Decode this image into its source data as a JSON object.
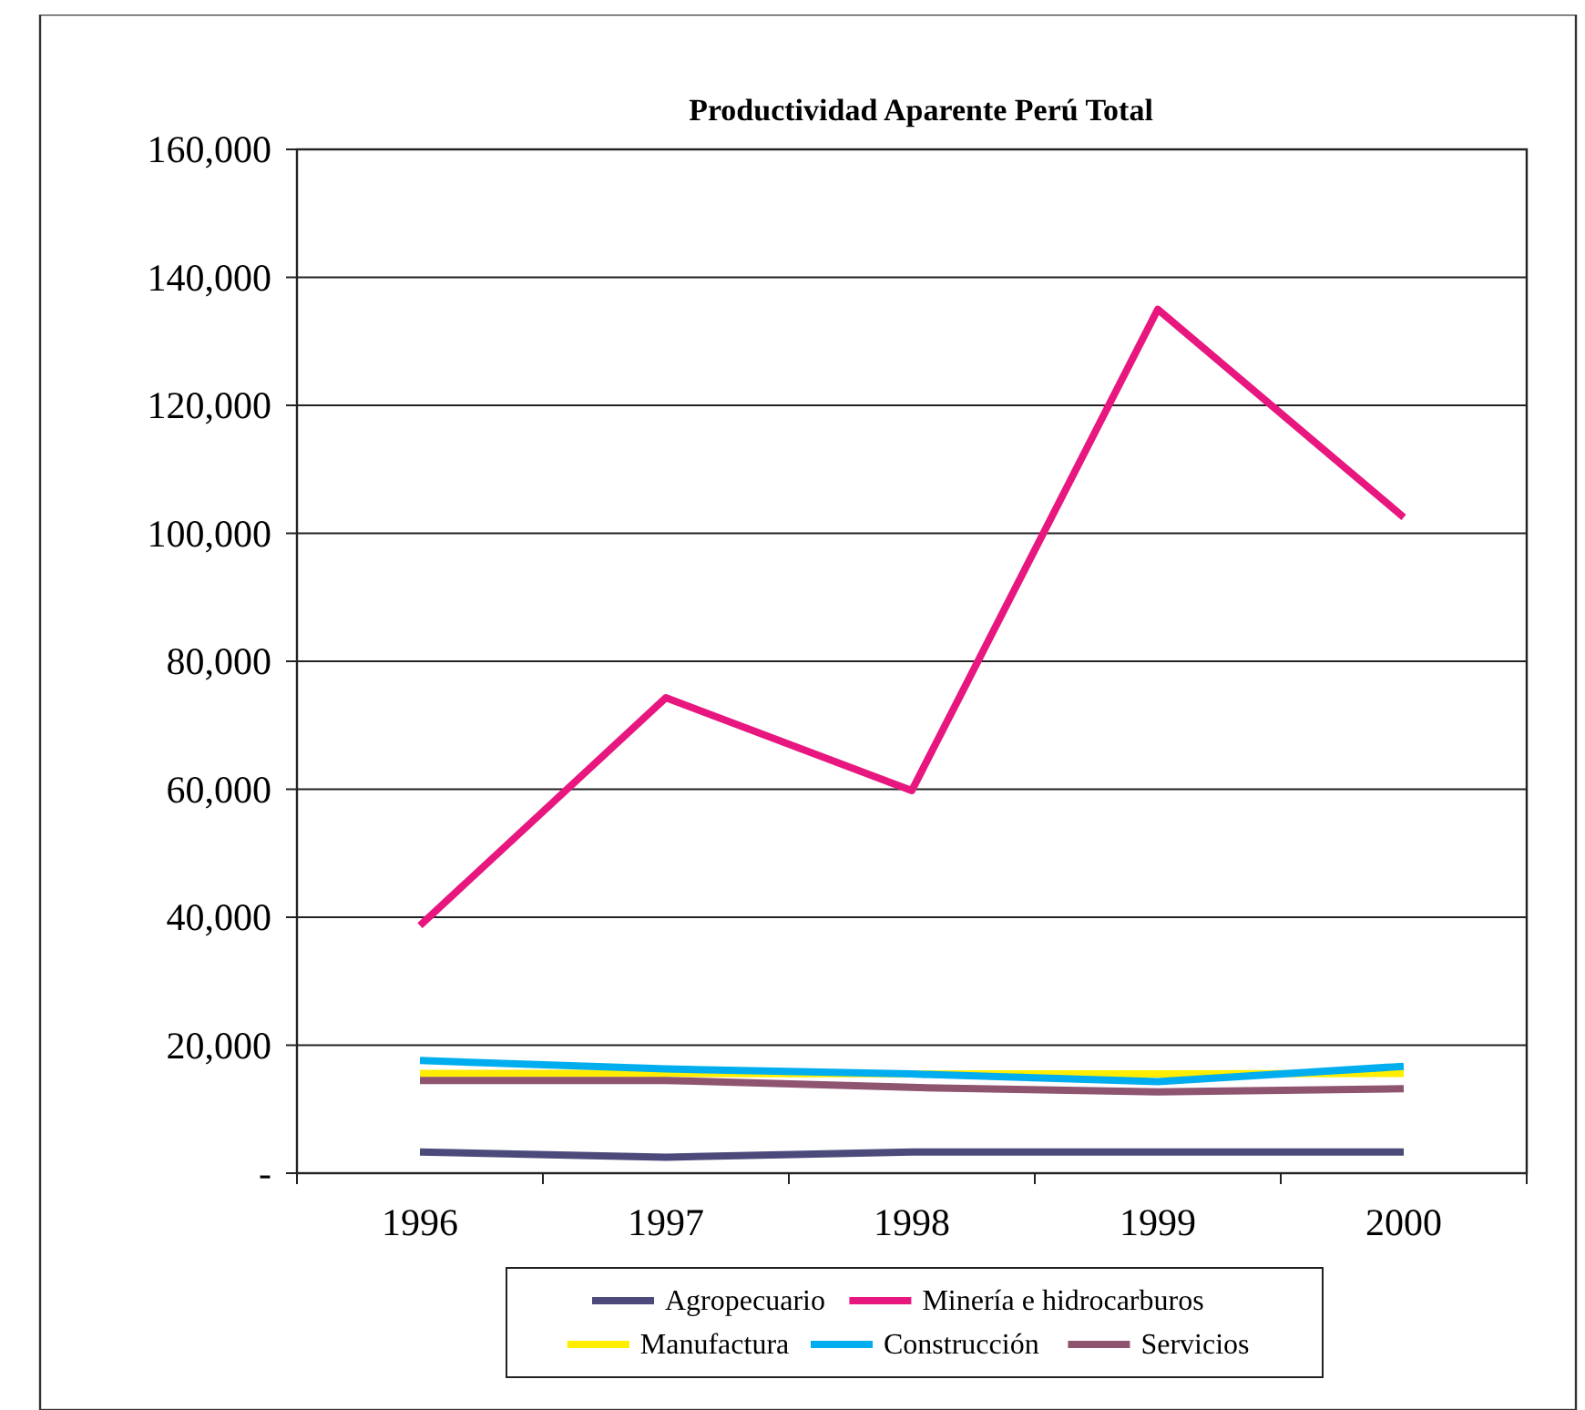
{
  "chart_data": {
    "type": "line",
    "title": "Productividad Aparente Perú Total",
    "categories": [
      "1996",
      "1997",
      "1998",
      "1999",
      "2000"
    ],
    "ylim": [
      0,
      160000
    ],
    "yticks": [
      {
        "value": 0,
        "label": "-"
      },
      {
        "value": 20000,
        "label": "20,000"
      },
      {
        "value": 40000,
        "label": "40,000"
      },
      {
        "value": 60000,
        "label": "60,000"
      },
      {
        "value": 80000,
        "label": "80,000"
      },
      {
        "value": 100000,
        "label": "100,000"
      },
      {
        "value": 120000,
        "label": "120,000"
      },
      {
        "value": 140000,
        "label": "140,000"
      },
      {
        "value": 160000,
        "label": "160,000"
      }
    ],
    "grid": "y",
    "legend": "bottom",
    "marker": "none",
    "line_style": "solid",
    "series": [
      {
        "name": "Agropecuario",
        "color": "#4b4a7a",
        "values": [
          3300,
          2500,
          3300,
          3300,
          3300
        ]
      },
      {
        "name": "Minería e hidrocarburos",
        "color": "#e8177f",
        "values": [
          38700,
          74300,
          59800,
          135000,
          102500
        ]
      },
      {
        "name": "Manufactura",
        "color": "#ffee00",
        "values": [
          15600,
          15600,
          15500,
          15500,
          15600
        ]
      },
      {
        "name": "Construcción",
        "color": "#00aeef",
        "values": [
          17600,
          16300,
          15500,
          14300,
          16700
        ]
      },
      {
        "name": "Servicios",
        "color": "#8e5470",
        "values": [
          14500,
          14500,
          13400,
          12700,
          13200
        ]
      }
    ]
  }
}
